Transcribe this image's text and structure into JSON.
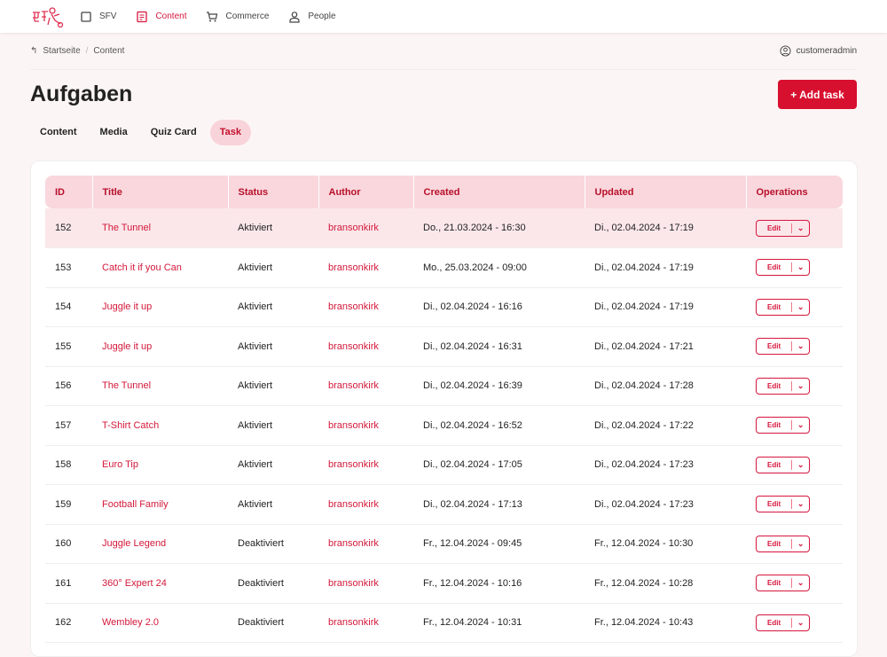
{
  "nav": {
    "items": [
      {
        "label": "SFV",
        "icon": "square-icon"
      },
      {
        "label": "Content",
        "icon": "document-icon",
        "active": true
      },
      {
        "label": "Commerce",
        "icon": "cart-icon"
      },
      {
        "label": "People",
        "icon": "user-icon"
      }
    ]
  },
  "breadcrumb": [
    "Startseite",
    "/",
    "Content"
  ],
  "user": "customeradmin",
  "page": {
    "title": "Aufgaben",
    "add_label": "+ Add task"
  },
  "tabs": [
    "Content",
    "Media",
    "Quiz Card",
    "Task"
  ],
  "active_tab": "Task",
  "table": {
    "headers": [
      "ID",
      "Title",
      "Status",
      "Author",
      "Created",
      "Updated",
      "Operations"
    ],
    "edit_label": "Edit",
    "rows": [
      [
        "152",
        "The Tunnel",
        "Aktiviert",
        "bransonkirk",
        "Do., 21.03.2024 - 16:30",
        "Di., 02.04.2024 - 17:19"
      ],
      [
        "153",
        "Catch it if you Can",
        "Aktiviert",
        "bransonkirk",
        "Mo., 25.03.2024 - 09:00",
        "Di., 02.04.2024 - 17:19"
      ],
      [
        "154",
        "Juggle it up",
        "Aktiviert",
        "bransonkirk",
        "Di., 02.04.2024 - 16:16",
        "Di., 02.04.2024 - 17:19"
      ],
      [
        "155",
        "Juggle it up",
        "Aktiviert",
        "bransonkirk",
        "Di., 02.04.2024 - 16:31",
        "Di., 02.04.2024 - 17:21"
      ],
      [
        "156",
        "The Tunnel",
        "Aktiviert",
        "bransonkirk",
        "Di., 02.04.2024 - 16:39",
        "Di., 02.04.2024 - 17:28"
      ],
      [
        "157",
        "T-Shirt Catch",
        "Aktiviert",
        "bransonkirk",
        "Di., 02.04.2024 - 16:52",
        "Di., 02.04.2024 - 17:22"
      ],
      [
        "158",
        "Euro Tip",
        "Aktiviert",
        "bransonkirk",
        "Di., 02.04.2024 - 17:05",
        "Di., 02.04.2024 - 17:23"
      ],
      [
        "159",
        "Football Family",
        "Aktiviert",
        "bransonkirk",
        "Di., 02.04.2024 - 17:13",
        "Di., 02.04.2024 - 17:23"
      ],
      [
        "160",
        "Juggle Legend",
        "Deaktiviert",
        "bransonkirk",
        "Fr., 12.04.2024 - 09:45",
        "Fr., 12.04.2024 - 10:30"
      ],
      [
        "161",
        "360° Expert 24",
        "Deaktiviert",
        "bransonkirk",
        "Fr., 12.04.2024 - 10:16",
        "Fr., 12.04.2024 - 10:28"
      ],
      [
        "162",
        "Wembley 2.0",
        "Deaktiviert",
        "bransonkirk",
        "Fr., 12.04.2024 - 10:31",
        "Fr., 12.04.2024 - 10:43"
      ]
    ]
  },
  "colors": {
    "accent": "#d8102f",
    "header_bg": "#f9d7dd"
  }
}
